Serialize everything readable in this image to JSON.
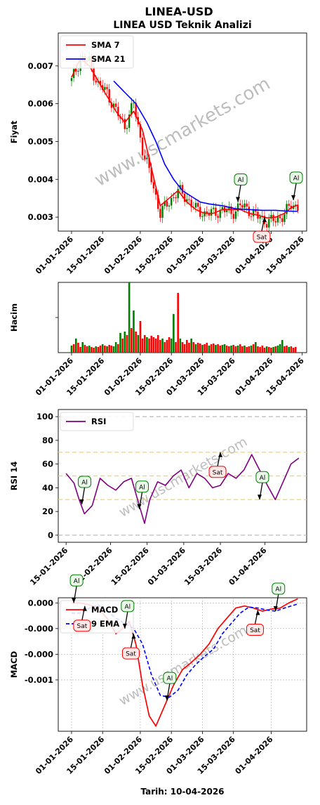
{
  "title": "LINEA-USD",
  "subtitle": "LINEA USD Teknik Analizi",
  "watermark": "www.uscmarkets.com",
  "footer": "Tarih: 10-04-2026",
  "colors": {
    "up": "#008000",
    "down": "#ff0000",
    "sma7": "#ff0000",
    "sma21": "#0000ff",
    "rsi": "#800080",
    "macd": "#ff0000",
    "ema9": "#0000ff",
    "buy_border": "#008000",
    "buy_fill": "#e8f7e8",
    "sell_border": "#ff0000",
    "sell_fill": "#fde8e8",
    "band_gray": "#bbbbbb",
    "band_gold": "#ffd24d"
  },
  "chart_data": [
    {
      "id": "price",
      "type": "line",
      "ylabel": "Fiyat",
      "x_ticks": [
        "01-01-2026",
        "15-01-2026",
        "01-02-2026",
        "15-02-2026",
        "01-03-2026",
        "15-03-2026",
        "01-04-2026",
        "15-04-2026"
      ],
      "y_ticks": [
        "0.003",
        "0.004",
        "0.005",
        "0.006",
        "0.007"
      ],
      "ylim": [
        0.00263,
        0.00787
      ],
      "xlim_dates": [
        "2025-12-26",
        "2026-04-17"
      ],
      "legend": [
        "SMA 7",
        "SMA 21"
      ],
      "legend_position": "top-left",
      "series": [
        {
          "name": "Close",
          "dates": [
            "2026-01-01",
            "2026-01-05",
            "2026-01-09",
            "2026-01-13",
            "2026-01-17",
            "2026-01-21",
            "2026-01-25",
            "2026-01-29",
            "2026-02-02",
            "2026-02-06",
            "2026-02-10",
            "2026-02-14",
            "2026-02-18",
            "2026-02-22",
            "2026-02-26",
            "2026-03-02",
            "2026-03-06",
            "2026-03-10",
            "2026-03-14",
            "2026-03-18",
            "2026-03-22",
            "2026-03-26",
            "2026-03-30",
            "2026-04-03",
            "2026-04-07",
            "2026-04-10",
            "2026-04-13"
          ],
          "values": [
            0.0066,
            0.0072,
            0.0071,
            0.0065,
            0.0063,
            0.0058,
            0.0054,
            0.006,
            0.0048,
            0.004,
            0.0031,
            0.0034,
            0.0037,
            0.0035,
            0.0032,
            0.0031,
            0.0031,
            0.0032,
            0.0031,
            0.0033,
            0.0032,
            0.003,
            0.0029,
            0.0029,
            0.0031,
            0.0033,
            0.0033
          ]
        },
        {
          "name": "SMA 7",
          "dates": [
            "2026-01-01",
            "2026-01-05",
            "2026-01-09",
            "2026-01-13",
            "2026-01-17",
            "2026-01-21",
            "2026-01-25",
            "2026-01-29",
            "2026-02-02",
            "2026-02-06",
            "2026-02-10",
            "2026-02-14",
            "2026-02-18",
            "2026-02-22",
            "2026-02-26",
            "2026-03-02",
            "2026-03-06",
            "2026-03-10",
            "2026-03-14",
            "2026-03-18",
            "2026-03-22",
            "2026-03-26",
            "2026-03-30",
            "2026-04-03",
            "2026-04-07",
            "2026-04-10",
            "2026-04-13"
          ],
          "values": [
            0.0067,
            0.0072,
            0.007,
            0.0066,
            0.0062,
            0.0058,
            0.0055,
            0.0058,
            0.0053,
            0.0043,
            0.0033,
            0.0035,
            0.0037,
            0.0034,
            0.0032,
            0.0031,
            0.0031,
            0.0032,
            0.0032,
            0.0032,
            0.0031,
            0.00305,
            0.00298,
            0.003,
            0.0031,
            0.00325,
            0.00332
          ]
        },
        {
          "name": "SMA 21",
          "dates": [
            "2026-01-20",
            "2026-01-25",
            "2026-01-30",
            "2026-02-04",
            "2026-02-08",
            "2026-02-12",
            "2026-02-16",
            "2026-02-20",
            "2026-02-24",
            "2026-02-28",
            "2026-03-04",
            "2026-03-10",
            "2026-03-16",
            "2026-03-22",
            "2026-03-28",
            "2026-04-03",
            "2026-04-08",
            "2026-04-13"
          ],
          "values": [
            0.0066,
            0.0063,
            0.006,
            0.0055,
            0.005,
            0.0044,
            0.004,
            0.0037,
            0.00355,
            0.0034,
            0.00335,
            0.0033,
            0.00322,
            0.0032,
            0.00318,
            0.00318,
            0.00316,
            0.00315
          ]
        }
      ],
      "annotations": [
        {
          "label": "Al",
          "date": "2026-03-17",
          "value": 0.0034,
          "kind": "buy"
        },
        {
          "label": "Sat",
          "date": "2026-03-29",
          "value": 0.003,
          "kind": "sell"
        },
        {
          "label": "Al",
          "date": "2026-04-11",
          "value": 0.00345,
          "kind": "buy"
        }
      ]
    },
    {
      "id": "volume",
      "type": "bar",
      "ylabel": "Hacim",
      "x_ticks": [
        "01-01-2026",
        "15-01-2026",
        "01-02-2026",
        "15-02-2026",
        "01-03-2026",
        "15-03-2026",
        "01-04-2026",
        "15-04-2026"
      ],
      "xlim_dates": [
        "2025-12-26",
        "2026-04-17"
      ],
      "ylim": [
        0,
        100
      ],
      "y_ticks_unlabeled": [
        50
      ],
      "bars": {
        "start_date": "2026-01-01",
        "values": [
          10,
          12,
          20,
          14,
          8,
          15,
          11,
          9,
          10,
          8,
          7,
          9,
          8,
          10,
          12,
          10,
          9,
          11,
          10,
          9,
          15,
          12,
          28,
          20,
          30,
          25,
          100,
          35,
          60,
          30,
          25,
          45,
          20,
          25,
          22,
          20,
          24,
          22,
          20,
          25,
          18,
          20,
          15,
          18,
          22,
          20,
          55,
          15,
          85,
          20,
          15,
          12,
          18,
          14,
          20,
          15,
          12,
          14,
          13,
          11,
          12,
          14,
          10,
          12,
          13,
          11,
          12,
          10,
          11,
          12,
          10,
          9,
          10,
          11,
          9,
          10,
          12,
          9,
          10,
          8,
          9,
          10,
          12,
          15,
          9,
          8,
          10,
          7,
          9,
          8,
          7,
          8,
          9,
          10,
          12,
          18,
          9,
          10,
          8,
          9,
          7,
          8
        ],
        "colors": [
          "g",
          "r",
          "g",
          "r",
          "r",
          "g",
          "r",
          "r",
          "g",
          "r",
          "r",
          "g",
          "r",
          "r",
          "g",
          "r",
          "g",
          "r",
          "r",
          "g",
          "g",
          "r",
          "g",
          "r",
          "g",
          "r",
          "g",
          "r",
          "g",
          "r",
          "g",
          "r",
          "r",
          "r",
          "g",
          "r",
          "r",
          "r",
          "r",
          "r",
          "r",
          "g",
          "r",
          "r",
          "r",
          "g",
          "g",
          "r",
          "r",
          "g",
          "r",
          "r",
          "r",
          "r",
          "g",
          "r",
          "g",
          "r",
          "r",
          "g",
          "r",
          "r",
          "g",
          "r",
          "r",
          "g",
          "r",
          "r",
          "g",
          "g",
          "r",
          "r",
          "g",
          "r",
          "r",
          "g",
          "r",
          "r",
          "g",
          "r",
          "r",
          "g",
          "r",
          "g",
          "r",
          "r",
          "r",
          "r",
          "g",
          "r",
          "r",
          "g",
          "r",
          "g",
          "g",
          "g",
          "r",
          "r",
          "g",
          "r",
          "r",
          "r"
        ]
      }
    },
    {
      "id": "rsi",
      "type": "line",
      "ylabel": "RSI 14",
      "x_ticks": [
        "15-01-2026",
        "01-02-2026",
        "15-02-2026",
        "01-03-2026",
        "15-03-2026",
        "01-04-2026"
      ],
      "y_ticks": [
        "0",
        "20",
        "40",
        "60",
        "80",
        "100"
      ],
      "ylim": [
        -6,
        106
      ],
      "xlim_dates": [
        "2026-01-12",
        "2026-04-17"
      ],
      "reference_lines": {
        "gray": [
          0,
          100
        ],
        "gold": [
          30,
          50,
          70
        ]
      },
      "legend": [
        "RSI"
      ],
      "legend_position": "top-left",
      "series": [
        {
          "name": "RSI",
          "dates": [
            "2026-01-15",
            "2026-01-18",
            "2026-01-20",
            "2026-01-22",
            "2026-01-25",
            "2026-01-28",
            "2026-01-31",
            "2026-02-03",
            "2026-02-06",
            "2026-02-09",
            "2026-02-12",
            "2026-02-14",
            "2026-02-16",
            "2026-02-19",
            "2026-02-22",
            "2026-02-25",
            "2026-02-28",
            "2026-03-03",
            "2026-03-06",
            "2026-03-09",
            "2026-03-12",
            "2026-03-15",
            "2026-03-18",
            "2026-03-21",
            "2026-03-24",
            "2026-03-27",
            "2026-03-30",
            "2026-04-02",
            "2026-04-05",
            "2026-04-08",
            "2026-04-11",
            "2026-04-14"
          ],
          "values": [
            52,
            44,
            30,
            18,
            25,
            48,
            42,
            38,
            45,
            48,
            25,
            10,
            30,
            45,
            42,
            50,
            55,
            40,
            52,
            48,
            40,
            42,
            52,
            48,
            55,
            68,
            55,
            42,
            30,
            45,
            60,
            65
          ]
        }
      ],
      "annotations": [
        {
          "label": "Al",
          "date": "2026-01-21",
          "value": 26,
          "kind": "buy"
        },
        {
          "label": "Al",
          "date": "2026-02-12",
          "value": 22,
          "kind": "buy"
        },
        {
          "label": "Sat",
          "date": "2026-03-15",
          "value": 70,
          "kind": "sell"
        },
        {
          "label": "Al",
          "date": "2026-03-30",
          "value": 30,
          "kind": "buy"
        }
      ]
    },
    {
      "id": "macd",
      "type": "line",
      "ylabel": "MACD",
      "xlabel": "Tarih: 10-04-2026",
      "x_ticks": [
        "01-01-2026",
        "15-01-2026",
        "01-02-2026",
        "15-02-2026",
        "01-03-2026",
        "15-03-2026",
        "01-04-2026"
      ],
      "y_ticks": [
        "0.000",
        "-0.000",
        "-0.000",
        "-0.001"
      ],
      "ylim": [
        -0.00125,
        5e-05
      ],
      "xlim_dates": [
        "2025-12-26",
        "2026-04-17"
      ],
      "legend": [
        "MACD",
        "9 EMA"
      ],
      "legend_position": "top-left",
      "series": [
        {
          "name": "MACD",
          "dates": [
            "2026-01-01",
            "2026-01-05",
            "2026-01-09",
            "2026-01-13",
            "2026-01-17",
            "2026-01-21",
            "2026-01-24",
            "2026-01-27",
            "2026-01-30",
            "2026-02-02",
            "2026-02-05",
            "2026-02-08",
            "2026-02-12",
            "2026-02-16",
            "2026-02-20",
            "2026-02-24",
            "2026-02-28",
            "2026-03-04",
            "2026-03-08",
            "2026-03-12",
            "2026-03-16",
            "2026-03-20",
            "2026-03-24",
            "2026-03-28",
            "2026-04-01",
            "2026-04-05",
            "2026-04-09",
            "2026-04-13"
          ],
          "values": [
            0.0,
            0.0,
            -2e-05,
            -5e-05,
            -0.00015,
            -0.0003,
            -0.00025,
            -0.00018,
            -0.0004,
            -0.0008,
            -0.0011,
            -0.0012,
            -0.001,
            -0.0008,
            -0.00065,
            -0.00058,
            -0.0005,
            -0.0004,
            -0.00025,
            -0.00015,
            -5e-05,
            -3e-05,
            -5e-05,
            -8e-05,
            -6e-05,
            -5e-05,
            0.0,
            4e-05
          ]
        },
        {
          "name": "9 EMA",
          "dates": [
            "2026-01-01",
            "2026-01-05",
            "2026-01-09",
            "2026-01-13",
            "2026-01-17",
            "2026-01-21",
            "2026-01-25",
            "2026-01-29",
            "2026-02-02",
            "2026-02-06",
            "2026-02-10",
            "2026-02-14",
            "2026-02-18",
            "2026-02-22",
            "2026-02-26",
            "2026-03-02",
            "2026-03-06",
            "2026-03-10",
            "2026-03-14",
            "2026-03-18",
            "2026-03-22",
            "2026-03-26",
            "2026-03-30",
            "2026-04-03",
            "2026-04-07",
            "2026-04-13"
          ],
          "values": [
            -0.0001,
            -0.0001,
            -5e-05,
            -2e-05,
            -8e-05,
            -0.00015,
            -0.0002,
            -0.00025,
            -0.0004,
            -0.0007,
            -0.0009,
            -0.00092,
            -0.00085,
            -0.0007,
            -0.0006,
            -0.00052,
            -0.00045,
            -0.0003,
            -0.0002,
            -0.0001,
            -4e-05,
            -5e-05,
            -7e-05,
            -8e-05,
            -5e-05,
            -1e-05
          ]
        }
      ],
      "annotations": [
        {
          "label": "Al",
          "date": "2026-01-02",
          "value": 0.0,
          "kind": "buy"
        },
        {
          "label": "Sat",
          "date": "2026-01-07",
          "value": -3e-05,
          "kind": "sell"
        },
        {
          "label": "Al",
          "date": "2026-01-25",
          "value": -0.00025,
          "kind": "buy"
        },
        {
          "label": "Sat",
          "date": "2026-01-29",
          "value": -0.0003,
          "kind": "sell"
        },
        {
          "label": "Al",
          "date": "2026-02-13",
          "value": -0.00095,
          "kind": "buy"
        },
        {
          "label": "Sat",
          "date": "2026-03-26",
          "value": -7e-05,
          "kind": "sell"
        },
        {
          "label": "Al",
          "date": "2026-04-03",
          "value": -8e-05,
          "kind": "buy"
        }
      ]
    }
  ]
}
